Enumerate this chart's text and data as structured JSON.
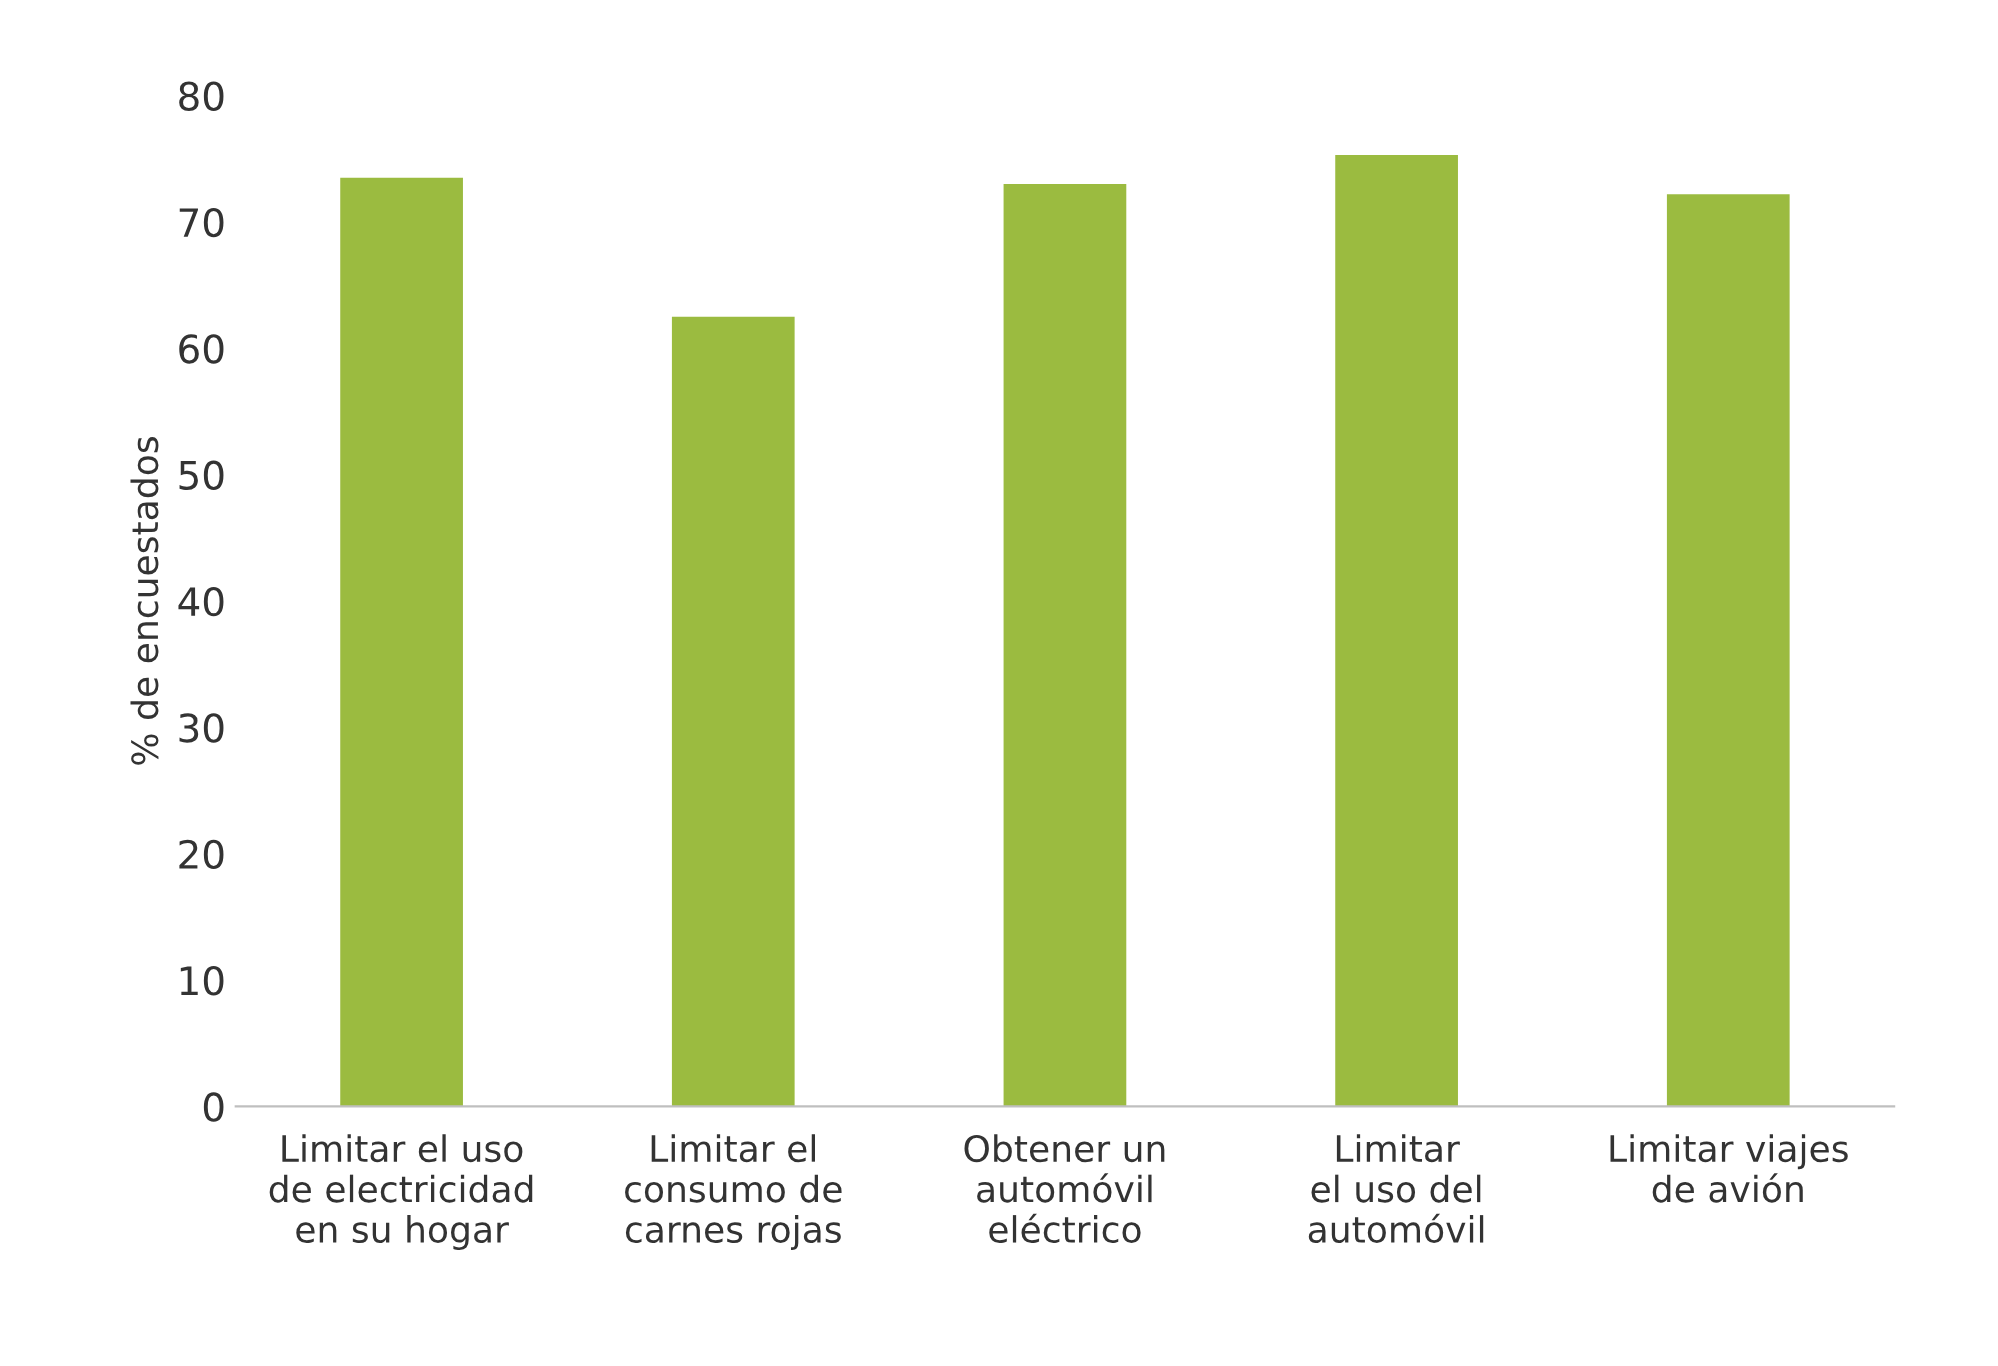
{
  "chart_data": {
    "type": "bar",
    "ylabel": "% de encuestados",
    "categories": [
      "Limitar el uso\nde electricidad\nen su hogar",
      "Limitar el\nconsumo de\ncarnes rojas",
      "Obtener un\nautomóvil\neléctrico",
      "Limitar\nel uso del\nautomóvil",
      "Limitar viajes\nde avión"
    ],
    "values": [
      73.5,
      62.5,
      73.0,
      75.3,
      72.2
    ],
    "color": "#9bbb40",
    "ylim": [
      0,
      80
    ],
    "yticks": [
      0,
      10,
      20,
      30,
      40,
      50,
      60,
      70,
      80
    ],
    "grid": false,
    "legend": false
  }
}
